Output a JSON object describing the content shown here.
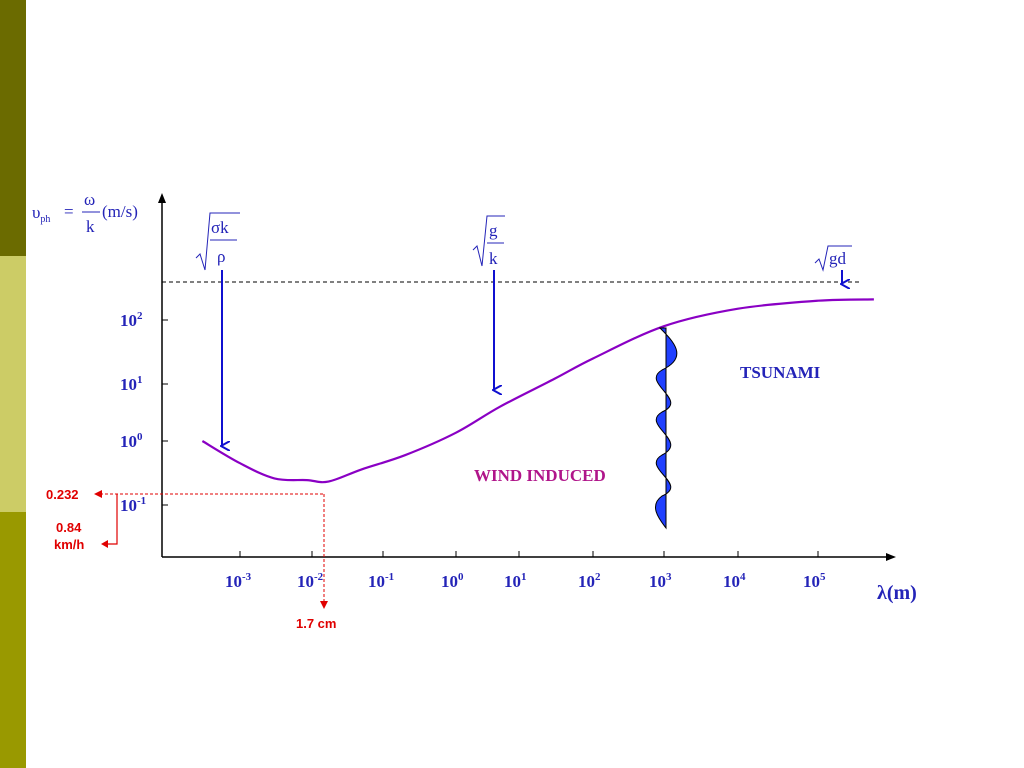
{
  "colors": {
    "band_dark": "#6b6b00",
    "band_light": "#cccc66",
    "band_mid": "#999900",
    "axis_text": "#2424b8",
    "curve": "#8a00c4",
    "arrow_blue": "#1010d0",
    "marker_red": "#e00000",
    "wind_label": "#b0158a",
    "tsunami_label": "#2424b8",
    "wave_fill": "#2040ff"
  },
  "y_axis_label": {
    "symbol": "υ",
    "subscript": "ph",
    "equals": "=",
    "numerator": "ω",
    "denominator": "k",
    "unit": "(m/s)"
  },
  "x_axis_label": "λ(m)",
  "formulas": {
    "capillary": {
      "numerator": "σk",
      "denominator": "ρ"
    },
    "gravity": {
      "numerator": "g",
      "denominator": "k"
    },
    "shallow": {
      "radicand": "gd"
    }
  },
  "annotations": {
    "wind": "WIND INDUCED",
    "tsunami": "TSUNAMI"
  },
  "markers": {
    "min_speed": "0.232",
    "min_speed_kmh_line1": "0.84",
    "min_speed_kmh_line2": "km/h",
    "min_wavelength": "1.7 cm"
  },
  "chart_data": {
    "type": "line",
    "xscale": "log",
    "yscale": "log",
    "xlabel": "λ(m)",
    "ylabel": "υph = ω/k (m/s)",
    "x_ticks": [
      {
        "base": "10",
        "exp": "-3",
        "value": 0.001
      },
      {
        "base": "10",
        "exp": "-2",
        "value": 0.01
      },
      {
        "base": "10",
        "exp": "-1",
        "value": 0.1
      },
      {
        "base": "10",
        "exp": "0",
        "value": 1
      },
      {
        "base": "10",
        "exp": "1",
        "value": 10
      },
      {
        "base": "10",
        "exp": "2",
        "value": 100
      },
      {
        "base": "10",
        "exp": "3",
        "value": 1000
      },
      {
        "base": "10",
        "exp": "4",
        "value": 10000
      },
      {
        "base": "10",
        "exp": "5",
        "value": 100000
      }
    ],
    "y_ticks": [
      {
        "base": "10",
        "exp": "-1",
        "value": 0.1
      },
      {
        "base": "10",
        "exp": "0",
        "value": 1
      },
      {
        "base": "10",
        "exp": "1",
        "value": 10
      },
      {
        "base": "10",
        "exp": "2",
        "value": 100
      }
    ],
    "series": [
      {
        "x": [
          0.0003,
          0.001,
          0.003,
          0.0085,
          0.017,
          0.05,
          0.2,
          1,
          5,
          30,
          100,
          1000,
          10000,
          100000,
          500000
        ],
        "y": [
          1.0,
          0.45,
          0.26,
          0.245,
          0.232,
          0.36,
          0.6,
          1.4,
          4.0,
          12,
          25,
          80,
          150,
          200,
          210
        ]
      }
    ],
    "asymptote_y": 300,
    "minimum": {
      "x": 0.017,
      "y": 0.232
    }
  }
}
